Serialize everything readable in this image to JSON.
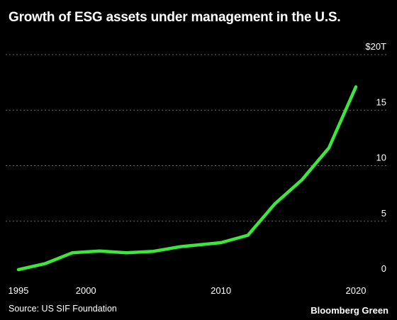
{
  "title": "Growth of ESG assets under management in the U.S.",
  "source": "Source: US SIF Foundation",
  "brand": "Bloomberg Green",
  "chart_data": {
    "type": "line",
    "title": "Growth of ESG assets under management in the U.S.",
    "xlabel": "",
    "ylabel": "",
    "x": [
      1995,
      1997,
      1999,
      2001,
      2003,
      2005,
      2007,
      2010,
      2012,
      2014,
      2016,
      2018,
      2020
    ],
    "series": [
      {
        "values": [
          0.64,
          1.19,
          2.16,
          2.32,
          2.16,
          2.29,
          2.71,
          3.07,
          3.74,
          6.57,
          8.72,
          11.6,
          17.1
        ],
        "color": "#3ce63c"
      }
    ],
    "xlim": [
      1995,
      2020
    ],
    "ylim": [
      0,
      20
    ],
    "x_ticks": [
      {
        "value": 1995,
        "label": "1995"
      },
      {
        "value": 2000,
        "label": "2000"
      },
      {
        "value": 2010,
        "label": "2010"
      },
      {
        "value": 2020,
        "label": "2020"
      }
    ],
    "y_ticks": [
      {
        "value": 0,
        "label": "0"
      },
      {
        "value": 5,
        "label": "5"
      },
      {
        "value": 10,
        "label": "10"
      },
      {
        "value": 15,
        "label": "15"
      },
      {
        "value": 20,
        "label": "$20T"
      }
    ],
    "grid": "horizontal-dashed",
    "line_color": "#3ce63c",
    "grid_color": "#6a6a6a"
  }
}
